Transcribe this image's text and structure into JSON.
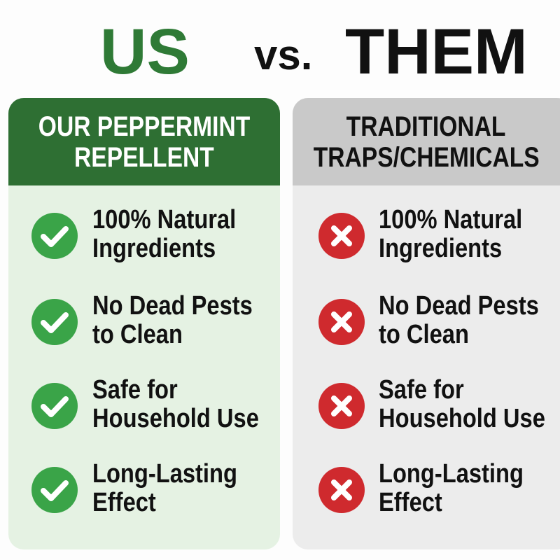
{
  "title": {
    "us": "US",
    "vs": "vs.",
    "them": "THEM"
  },
  "colors": {
    "green_header": "#2e6f33",
    "check": "#3aa448",
    "cross": "#cf2a2e",
    "gray_header": "#c9c9c9"
  },
  "left": {
    "header": [
      "OUR PEPPERMINT",
      "REPELLENT"
    ],
    "icon": "check-circle-icon",
    "items": [
      [
        "100% Natural",
        "Ingredients"
      ],
      [
        "No Dead Pests",
        "to Clean"
      ],
      [
        "Safe for",
        "Household Use"
      ],
      [
        "Long-Lasting",
        "Effect"
      ]
    ]
  },
  "right": {
    "header": [
      "TRADITIONAL",
      "TRAPS/CHEMICALS"
    ],
    "icon": "x-circle-icon",
    "items": [
      [
        "100% Natural",
        "Ingredients"
      ],
      [
        "No Dead Pests",
        "to Clean"
      ],
      [
        "Safe for",
        "Household Use"
      ],
      [
        "Long-Lasting",
        "Effect"
      ]
    ]
  }
}
